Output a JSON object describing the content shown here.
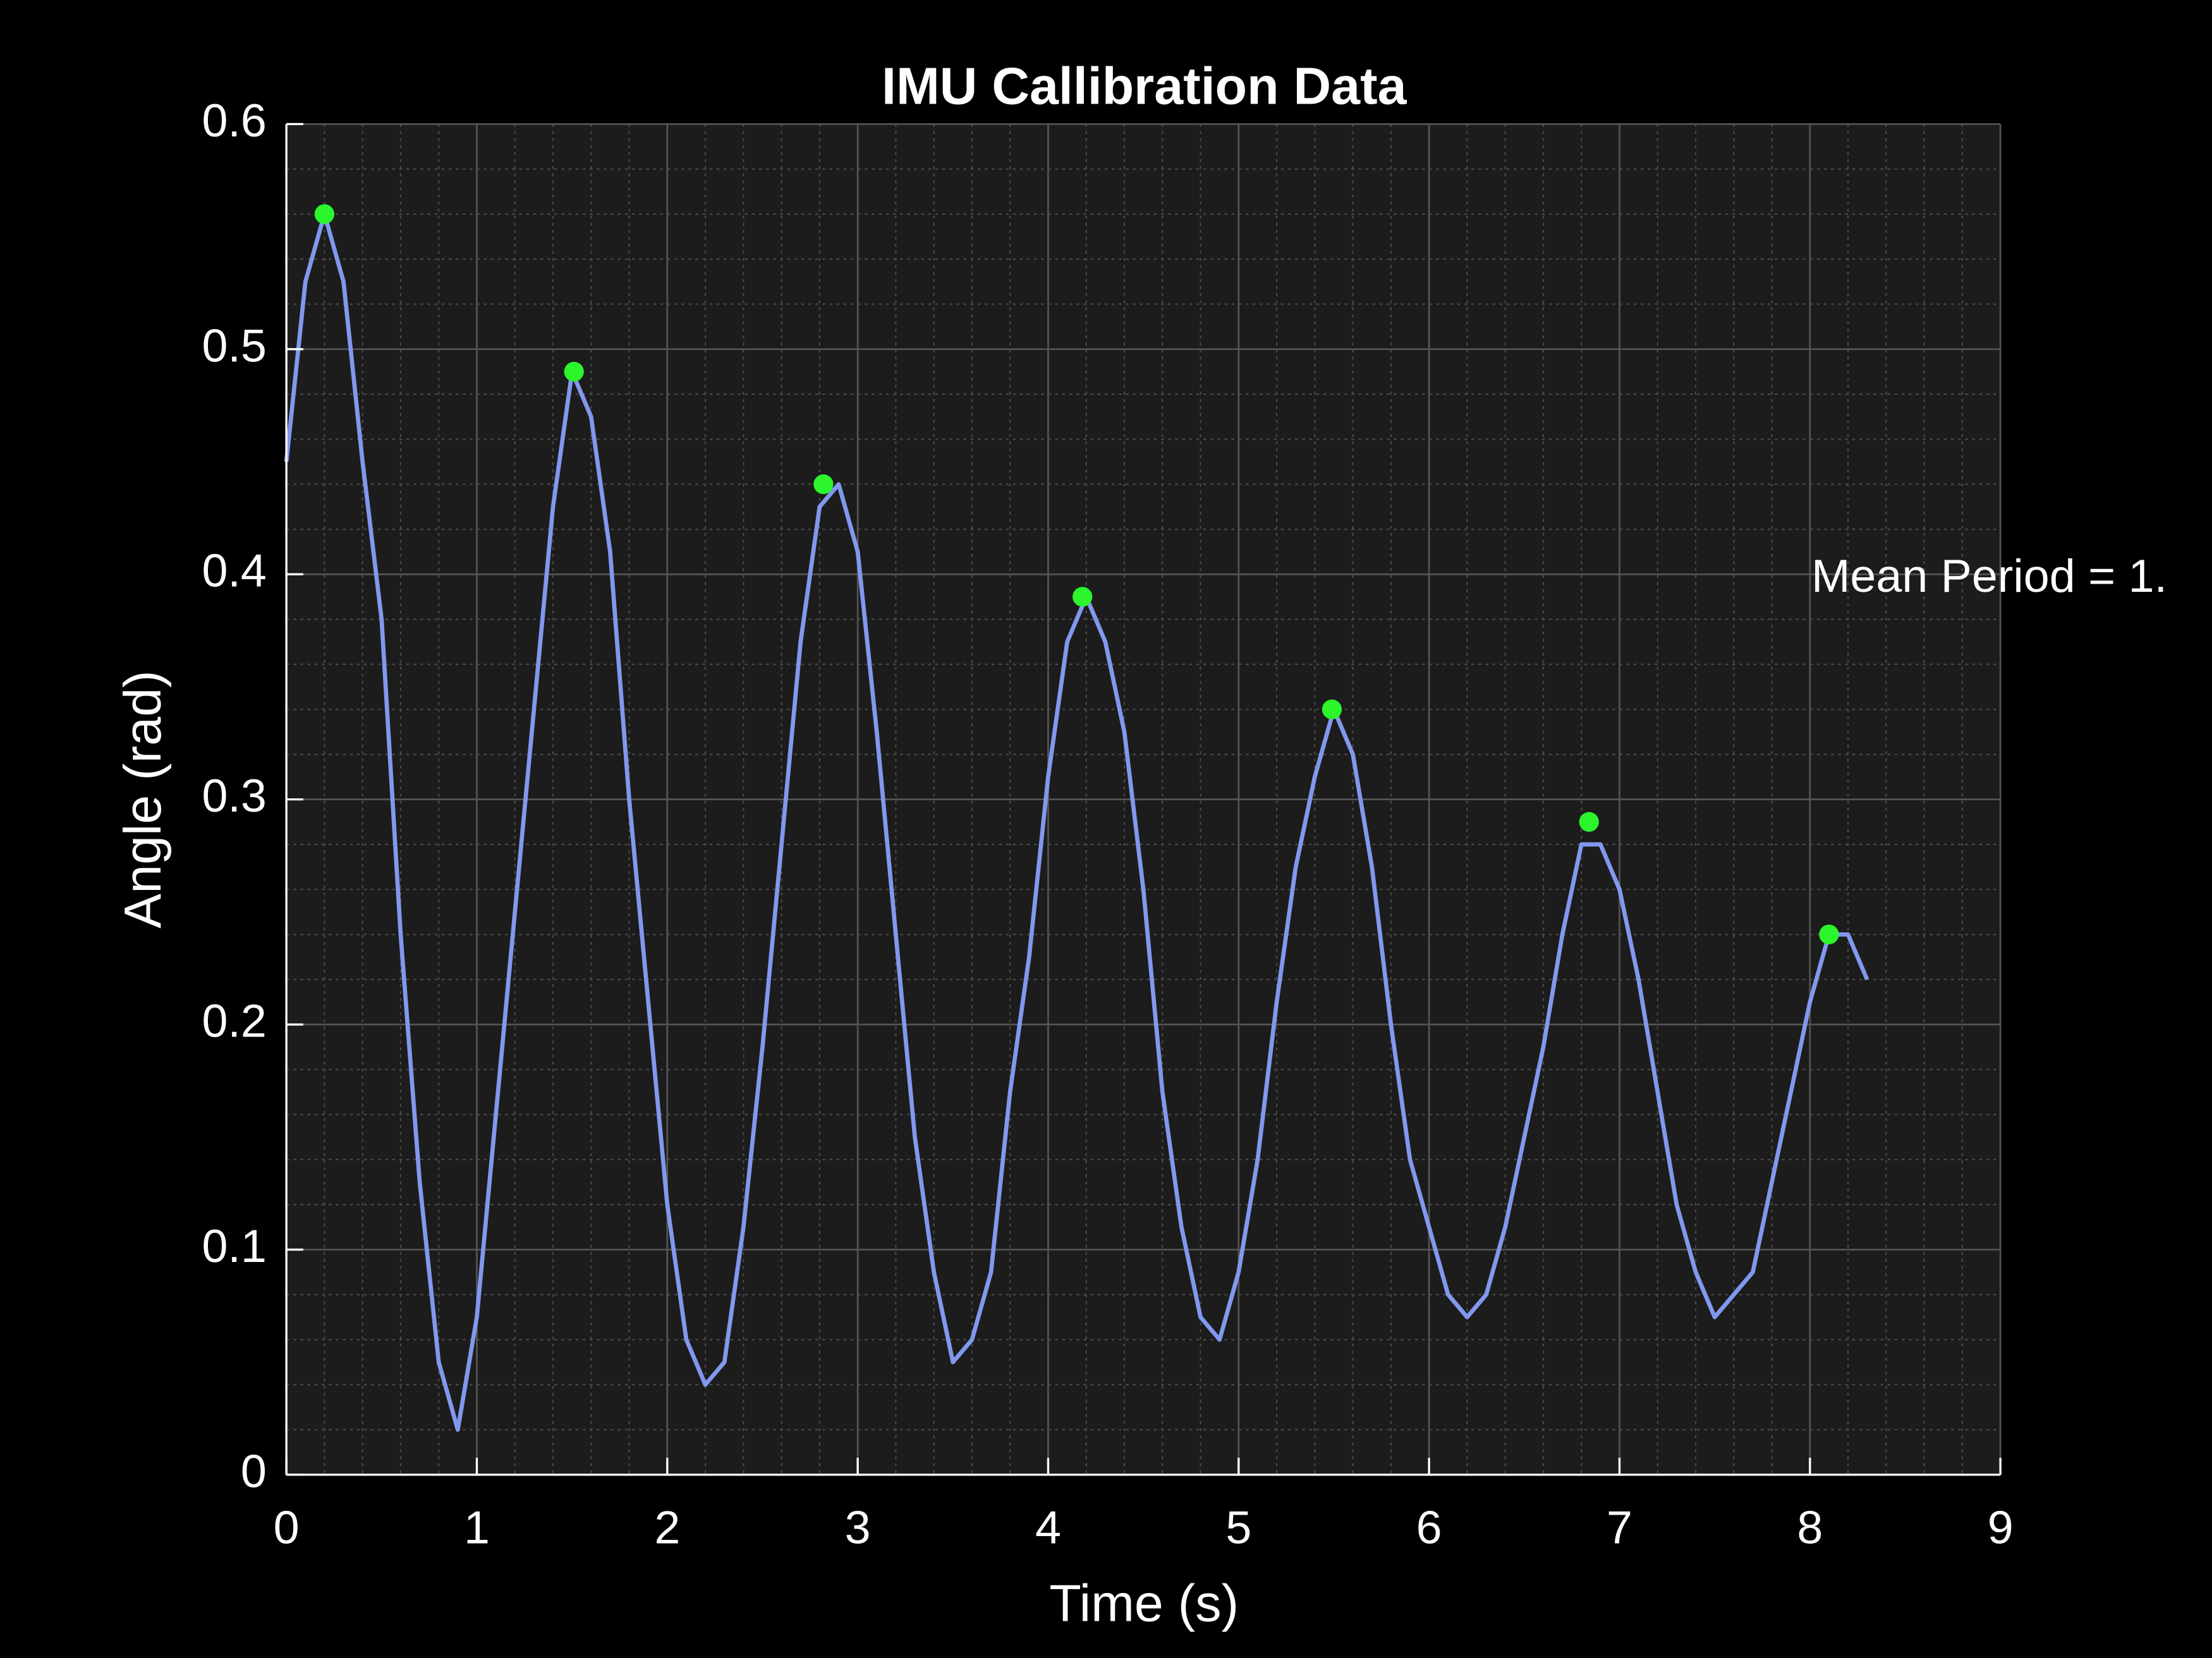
{
  "chart_data": {
    "type": "line",
    "title": "IMU Callibration Data",
    "xlabel": "Time (s)",
    "ylabel": "Angle (rad)",
    "annotation": "Mean Period = 1.",
    "xlim": [
      0,
      9
    ],
    "ylim": [
      0,
      0.6
    ],
    "xticks": [
      0,
      1,
      2,
      3,
      4,
      5,
      6,
      7,
      8,
      9
    ],
    "yticks": [
      0,
      0.1,
      0.2,
      0.3,
      0.4,
      0.5,
      0.6
    ],
    "grid": true,
    "minor_grid": true,
    "series": [
      {
        "type": "line",
        "color": "#8099ee",
        "x": [
          0,
          0.1,
          0.2,
          0.3,
          0.4,
          0.5,
          0.6,
          0.7,
          0.8,
          0.9,
          1.0,
          1.1,
          1.2,
          1.3,
          1.4,
          1.5,
          1.6,
          1.7,
          1.8,
          1.9,
          2.0,
          2.1,
          2.2,
          2.3,
          2.4,
          2.5,
          2.6,
          2.7,
          2.8,
          2.9,
          3.0,
          3.1,
          3.2,
          3.3,
          3.4,
          3.5,
          3.6,
          3.7,
          3.8,
          3.9,
          4.0,
          4.1,
          4.2,
          4.3,
          4.4,
          4.5,
          4.6,
          4.7,
          4.8,
          4.9,
          5.0,
          5.1,
          5.2,
          5.3,
          5.4,
          5.5,
          5.6,
          5.7,
          5.8,
          5.9,
          6.0,
          6.1,
          6.2,
          6.3,
          6.4,
          6.5,
          6.6,
          6.7,
          6.8,
          6.9,
          7.0,
          7.1,
          7.2,
          7.3,
          7.4,
          7.5,
          7.6,
          7.7,
          7.8,
          7.9,
          8.0,
          8.1,
          8.2,
          8.3
        ],
        "values": [
          0.45,
          0.53,
          0.56,
          0.53,
          0.45,
          0.38,
          0.24,
          0.13,
          0.05,
          0.02,
          0.07,
          0.16,
          0.25,
          0.34,
          0.43,
          0.49,
          0.47,
          0.41,
          0.3,
          0.21,
          0.12,
          0.06,
          0.04,
          0.05,
          0.11,
          0.19,
          0.28,
          0.37,
          0.43,
          0.44,
          0.41,
          0.33,
          0.24,
          0.15,
          0.09,
          0.05,
          0.06,
          0.09,
          0.17,
          0.23,
          0.31,
          0.37,
          0.39,
          0.37,
          0.33,
          0.26,
          0.17,
          0.11,
          0.07,
          0.06,
          0.09,
          0.14,
          0.21,
          0.27,
          0.31,
          0.34,
          0.32,
          0.27,
          0.2,
          0.14,
          0.11,
          0.08,
          0.07,
          0.08,
          0.11,
          0.15,
          0.19,
          0.24,
          0.28,
          0.28,
          0.26,
          0.22,
          0.17,
          0.12,
          0.09,
          0.07,
          0.08,
          0.09,
          0.13,
          0.17,
          0.21,
          0.24,
          0.24,
          0.22
        ]
      },
      {
        "type": "scatter",
        "color": "#2cf52c",
        "x": [
          0.2,
          1.51,
          2.82,
          4.18,
          5.49,
          6.84,
          8.1
        ],
        "values": [
          0.56,
          0.49,
          0.44,
          0.39,
          0.34,
          0.29,
          0.24
        ]
      }
    ]
  }
}
